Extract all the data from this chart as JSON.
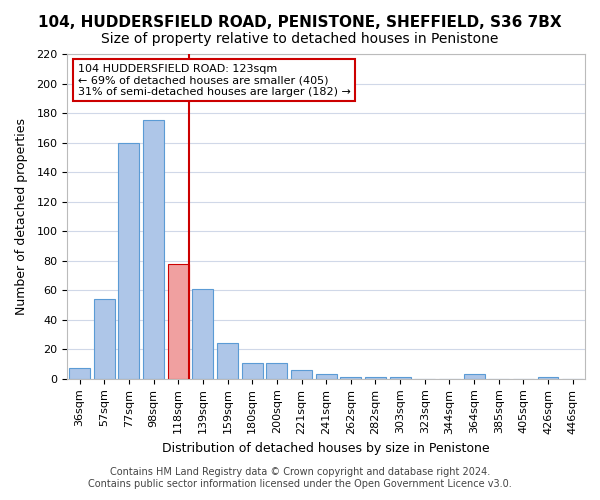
{
  "title": "104, HUDDERSFIELD ROAD, PENISTONE, SHEFFIELD, S36 7BX",
  "subtitle": "Size of property relative to detached houses in Penistone",
  "xlabel": "Distribution of detached houses by size in Penistone",
  "ylabel": "Number of detached properties",
  "bar_labels": [
    "36sqm",
    "57sqm",
    "77sqm",
    "98sqm",
    "118sqm",
    "139sqm",
    "159sqm",
    "180sqm",
    "200sqm",
    "221sqm",
    "241sqm",
    "262sqm",
    "282sqm",
    "303sqm",
    "323sqm",
    "344sqm",
    "364sqm",
    "385sqm",
    "405sqm",
    "426sqm",
    "446sqm"
  ],
  "bar_values": [
    7,
    54,
    160,
    175,
    78,
    61,
    24,
    11,
    11,
    6,
    3,
    1,
    1,
    1,
    0,
    0,
    3,
    0,
    0,
    1,
    0
  ],
  "bar_color": "#aec6e8",
  "bar_edge_color": "#5b9bd5",
  "highlight_bar_index": 4,
  "highlight_bar_color": "#f0a0a0",
  "highlight_bar_edge_color": "#cc0000",
  "vline_color": "#cc0000",
  "ylim": [
    0,
    220
  ],
  "yticks": [
    0,
    20,
    40,
    60,
    80,
    100,
    120,
    140,
    160,
    180,
    200,
    220
  ],
  "annotation_text": "104 HUDDERSFIELD ROAD: 123sqm\n← 69% of detached houses are smaller (405)\n31% of semi-detached houses are larger (182) →",
  "annotation_box_color": "#ffffff",
  "annotation_box_edge": "#cc0000",
  "footer_line1": "Contains HM Land Registry data © Crown copyright and database right 2024.",
  "footer_line2": "Contains public sector information licensed under the Open Government Licence v3.0.",
  "background_color": "#ffffff",
  "grid_color": "#d0d8e8",
  "title_fontsize": 11,
  "subtitle_fontsize": 10,
  "axis_label_fontsize": 9,
  "tick_fontsize": 8,
  "footer_fontsize": 7
}
